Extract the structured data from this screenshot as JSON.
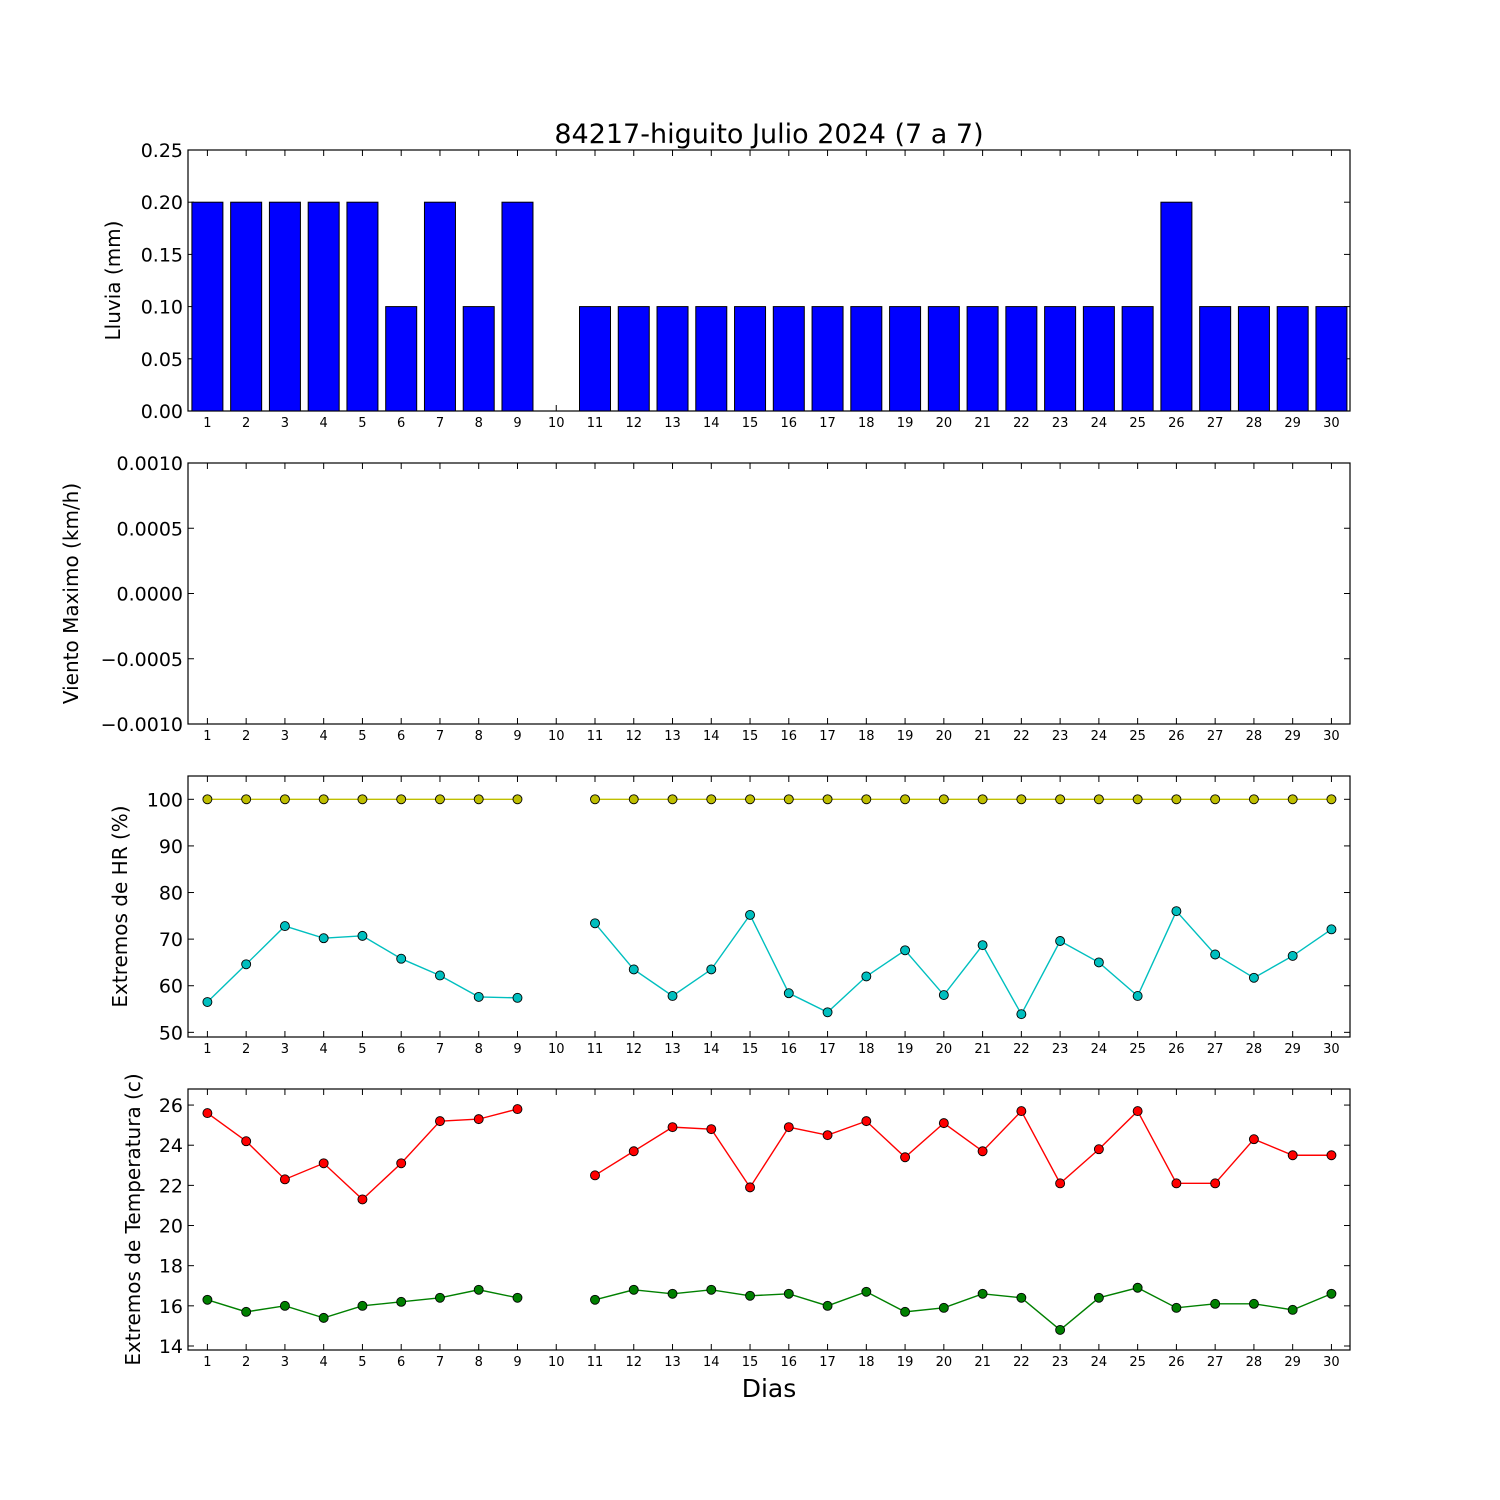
{
  "figure": {
    "title": "84217-higuito Julio 2024  (7 a 7)",
    "xlabel": "Dias"
  },
  "chart_data": [
    {
      "type": "bar",
      "ylabel": "Lluvia (mm)",
      "ylim": [
        0,
        0.25
      ],
      "yticks": [
        "0.00",
        "0.05",
        "0.10",
        "0.15",
        "0.20",
        "0.25"
      ],
      "categories": [
        "1",
        "2",
        "3",
        "4",
        "5",
        "6",
        "7",
        "8",
        "9",
        "10",
        "11",
        "12",
        "13",
        "14",
        "15",
        "16",
        "17",
        "18",
        "19",
        "20",
        "21",
        "22",
        "23",
        "24",
        "25",
        "26",
        "27",
        "28",
        "29",
        "30"
      ],
      "values": [
        0.2,
        0.2,
        0.2,
        0.2,
        0.2,
        0.1,
        0.2,
        0.1,
        0.2,
        0,
        0.1,
        0.1,
        0.1,
        0.1,
        0.1,
        0.1,
        0.1,
        0.1,
        0.1,
        0.1,
        0.1,
        0.1,
        0.1,
        0.1,
        0.1,
        0.2,
        0.1,
        0.1,
        0.1,
        0.1
      ],
      "color": "#0000ff",
      "grid": false
    },
    {
      "type": "line",
      "ylabel": "Viento Maximo (km/h)",
      "ylim": [
        -0.001,
        0.001
      ],
      "yticks": [
        "−0.0010",
        "−0.0005",
        "0.0000",
        "0.0005",
        "0.0010"
      ],
      "categories": [
        "1",
        "2",
        "3",
        "4",
        "5",
        "6",
        "7",
        "8",
        "9",
        "10",
        "11",
        "12",
        "13",
        "14",
        "15",
        "16",
        "17",
        "18",
        "19",
        "20",
        "21",
        "22",
        "23",
        "24",
        "25",
        "26",
        "27",
        "28",
        "29",
        "30"
      ],
      "series": [],
      "grid": false
    },
    {
      "type": "line",
      "ylabel": "Extremos de HR (%)",
      "ylim": [
        49,
        105
      ],
      "yticks": [
        "50",
        "60",
        "70",
        "80",
        "90",
        "100"
      ],
      "categories": [
        "1",
        "2",
        "3",
        "4",
        "5",
        "6",
        "7",
        "8",
        "9",
        "10",
        "11",
        "12",
        "13",
        "14",
        "15",
        "16",
        "17",
        "18",
        "19",
        "20",
        "21",
        "22",
        "23",
        "24",
        "25",
        "26",
        "27",
        "28",
        "29",
        "30"
      ],
      "series": [
        {
          "color": "#bfbf00",
          "values": [
            100,
            100,
            100,
            100,
            100,
            100,
            100,
            100,
            100,
            null,
            100,
            100,
            100,
            100,
            100,
            100,
            100,
            100,
            100,
            100,
            100,
            100,
            100,
            100,
            100,
            100,
            100,
            100,
            100,
            100
          ]
        },
        {
          "color": "#00bfbf",
          "values": [
            56.5,
            64.6,
            72.8,
            70.2,
            70.7,
            65.8,
            62.2,
            57.6,
            57.4,
            null,
            73.4,
            63.5,
            57.8,
            63.5,
            75.2,
            58.4,
            54.3,
            62,
            67.6,
            58,
            68.7,
            53.9,
            69.6,
            65,
            57.8,
            76,
            66.7,
            61.7,
            66.4,
            72.1
          ]
        }
      ],
      "grid": false
    },
    {
      "type": "line",
      "ylabel": "Extremos de Temperatura (c)",
      "ylim": [
        13.8,
        26.8
      ],
      "yticks": [
        "14",
        "16",
        "18",
        "20",
        "22",
        "24",
        "26"
      ],
      "categories": [
        "1",
        "2",
        "3",
        "4",
        "5",
        "6",
        "7",
        "8",
        "9",
        "10",
        "11",
        "12",
        "13",
        "14",
        "15",
        "16",
        "17",
        "18",
        "19",
        "20",
        "21",
        "22",
        "23",
        "24",
        "25",
        "26",
        "27",
        "28",
        "29",
        "30"
      ],
      "series": [
        {
          "color": "#ff0000",
          "values": [
            25.6,
            24.2,
            22.3,
            23.1,
            21.3,
            23.1,
            25.2,
            25.3,
            25.8,
            null,
            22.5,
            23.7,
            24.9,
            24.8,
            21.9,
            24.9,
            24.5,
            25.2,
            23.4,
            25.1,
            23.7,
            25.7,
            22.1,
            23.8,
            25.7,
            22.1,
            22.1,
            24.3,
            23.5,
            23.5
          ]
        },
        {
          "color": "#008000",
          "values": [
            16.3,
            15.7,
            16,
            15.4,
            16,
            16.2,
            16.4,
            16.8,
            16.4,
            null,
            16.3,
            16.8,
            16.6,
            16.8,
            16.5,
            16.6,
            16,
            16.7,
            15.7,
            15.9,
            16.6,
            16.4,
            14.8,
            16.4,
            16.9,
            15.9,
            16.1,
            16.1,
            15.8,
            16.6
          ]
        }
      ],
      "grid": false
    }
  ]
}
